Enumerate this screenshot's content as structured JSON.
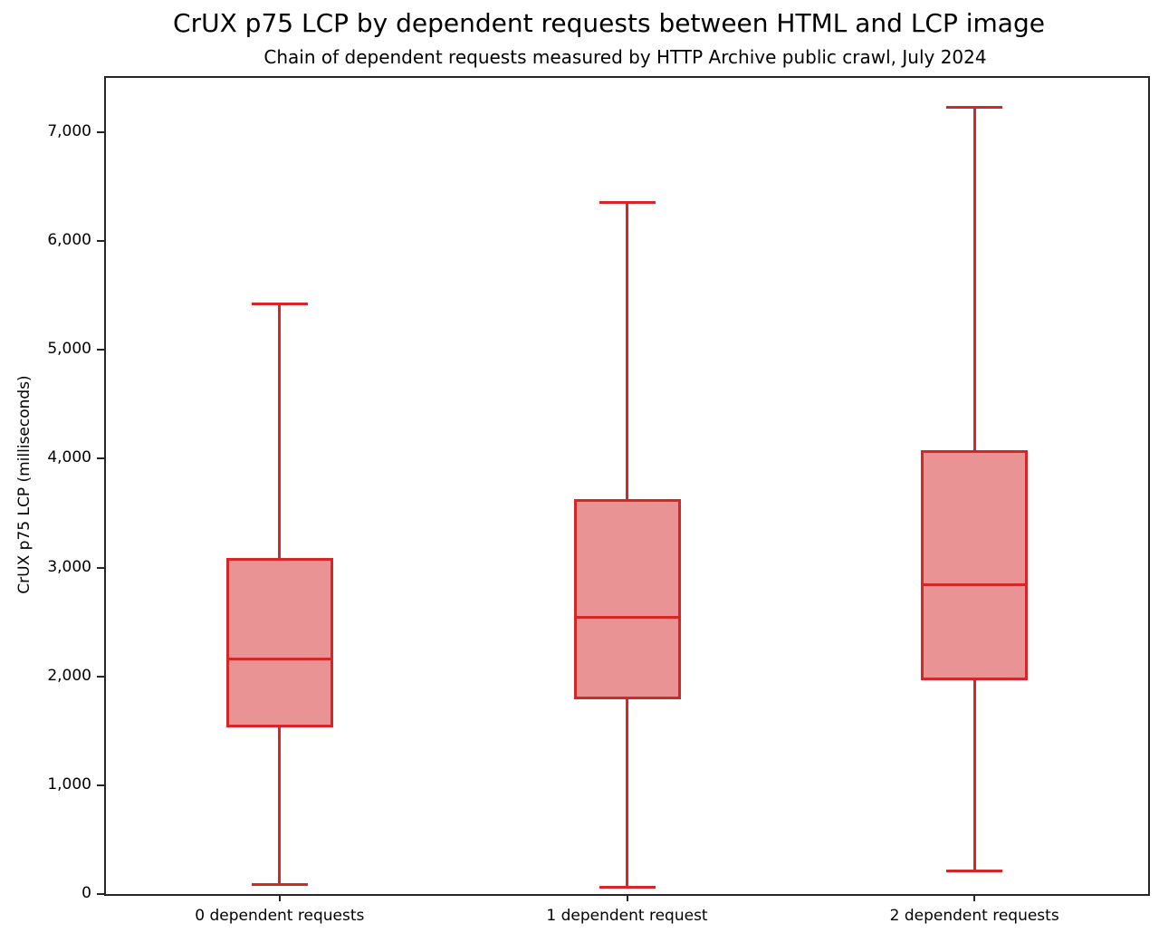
{
  "chart_data": {
    "type": "boxplot",
    "title": "CrUX p75 LCP by dependent requests between HTML and LCP image",
    "subtitle": "Chain of dependent requests measured by HTTP Archive public crawl, July 2024",
    "ylabel": "CrUX p75 LCP (milliseconds)",
    "xlabel": "",
    "categories": [
      "0 dependent requests",
      "1 dependent request",
      "2 dependent requests"
    ],
    "series": [
      {
        "name": "0 dependent requests",
        "whisker_low": 85,
        "q1": 1535,
        "median": 2160,
        "q3": 3085,
        "whisker_high": 5425
      },
      {
        "name": "1 dependent request",
        "whisker_low": 65,
        "q1": 1790,
        "median": 2545,
        "q3": 3630,
        "whisker_high": 6355
      },
      {
        "name": "2 dependent requests",
        "whisker_low": 215,
        "q1": 1965,
        "median": 2840,
        "q3": 4080,
        "whisker_high": 7230
      }
    ],
    "ylim": [
      0,
      7500
    ],
    "yticks": [
      0,
      1000,
      2000,
      3000,
      4000,
      5000,
      6000,
      7000
    ],
    "ytick_labels": [
      "0",
      "1,000",
      "2,000",
      "3,000",
      "4,000",
      "5,000",
      "6,000",
      "7,000"
    ],
    "grid": false,
    "legend": false,
    "colors": {
      "box_edge": "#d62728",
      "box_fill": "#ea9394",
      "axis": "#262626",
      "text": "#000000",
      "background": "#ffffff"
    }
  }
}
